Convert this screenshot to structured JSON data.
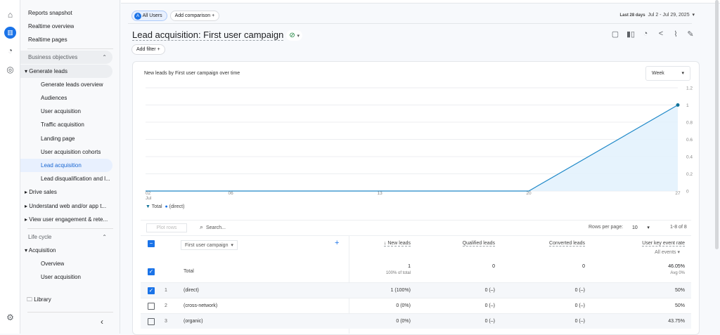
{
  "rail": {
    "icons": [
      "home-icon",
      "reports-icon",
      "explore-icon",
      "advertising-icon",
      "settings-icon"
    ]
  },
  "sidebar": {
    "top_items": [
      "Reports snapshot",
      "Realtime overview",
      "Realtime pages"
    ],
    "section1": "Business objectives",
    "group1": "Generate leads",
    "group1_items": [
      "Generate leads overview",
      "Audiences",
      "User acquisition",
      "Traffic acquisition",
      "Landing page",
      "User acquisition cohorts",
      "Lead acquisition",
      "Lead disqualification and l..."
    ],
    "collapsed_groups": [
      "Drive sales",
      "Understand web and/or app t...",
      "View user engagement & rete..."
    ],
    "section2": "Life cycle",
    "group2": "Acquisition",
    "group2_items": [
      "Overview",
      "User acquisition"
    ],
    "library": "Library",
    "selected": "Lead acquisition"
  },
  "header": {
    "segment_badge": "A",
    "segment": "All Users",
    "add_comparison": "Add comparison",
    "date_label": "Last 28 days",
    "date_range": "Jul 2 - Jul 29, 2025",
    "title": "Lead acquisition: First user campaign",
    "add_filter": "Add filter"
  },
  "chart_data": {
    "type": "area",
    "title": "New leads by First user campaign over time",
    "granularity": "Week",
    "x": [
      "Jul 2",
      "Jul 6",
      "Jul 13",
      "Jul 20",
      "Jul 27"
    ],
    "x_tick_labels": [
      "02",
      "06",
      "13",
      "20",
      "27"
    ],
    "x_tick_sublabel": "Jul",
    "ylim": [
      0,
      1.2
    ],
    "y_ticks": [
      "0",
      "0.2",
      "0.4",
      "0.6",
      "0.8",
      "1",
      "1.2"
    ],
    "series": [
      {
        "name": "Total",
        "values": [
          0,
          0,
          0,
          0,
          1
        ]
      }
    ],
    "legend": [
      "Total",
      "(direct)"
    ],
    "legend_position": "bottom-left",
    "grid": true,
    "color": "#1a73e8"
  },
  "table": {
    "plot_rows": "Plot rows",
    "search_placeholder": "Search...",
    "rows_per_page_label": "Rows per page:",
    "rows_per_page": "10",
    "pagination": "1-8 of 8",
    "dimension": "First user campaign",
    "columns": [
      "New leads",
      "Qualified leads",
      "Converted leads",
      "User key event rate"
    ],
    "col_sub": "All events",
    "total": {
      "label": "Total",
      "values": [
        "1",
        "0",
        "0",
        "46.05%"
      ],
      "subs": [
        "100% of total",
        "",
        "",
        "Avg 0%"
      ]
    },
    "rows": [
      {
        "n": "1",
        "name": "(direct)",
        "values": [
          "1 (100%)",
          "0 (–)",
          "0 (–)",
          "50%"
        ],
        "checked": true
      },
      {
        "n": "2",
        "name": "(cross-network)",
        "values": [
          "0 (0%)",
          "0 (–)",
          "0 (–)",
          "50%"
        ],
        "checked": false
      },
      {
        "n": "3",
        "name": "(organic)",
        "values": [
          "0 (0%)",
          "0 (–)",
          "0 (–)",
          "43.75%"
        ],
        "checked": false
      }
    ]
  }
}
